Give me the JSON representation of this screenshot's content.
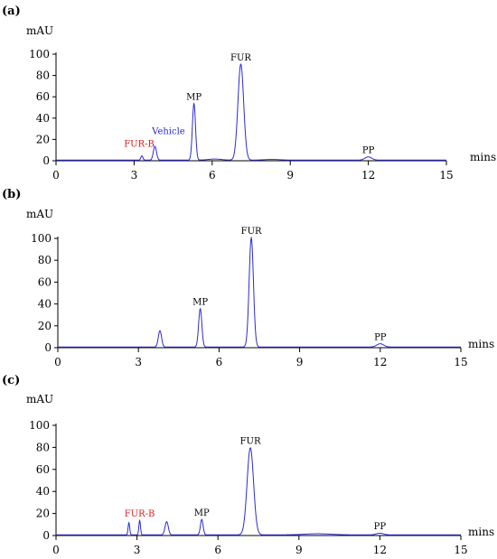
{
  "chart_data": [
    {
      "type": "line",
      "panel_label": "(a)",
      "ylabel": "mAU",
      "xlabel": "mins",
      "xlim": [
        0,
        15
      ],
      "ylim": [
        0,
        100
      ],
      "x_ticks": [
        "0",
        "3",
        "6",
        "9",
        "12",
        "15"
      ],
      "y_ticks": [
        "0",
        "20",
        "40",
        "60",
        "80",
        "100"
      ],
      "line_color": "#2b2bd6",
      "peaks": [
        {
          "label": "FUR-B",
          "x": 3.3,
          "y": 4,
          "color": "#d42020"
        },
        {
          "label": "Vehicle",
          "x": 3.8,
          "y": 13,
          "color": "#2a2ad0"
        },
        {
          "label": "MP",
          "x": 5.3,
          "y": 53,
          "color": "#000000"
        },
        {
          "label": "",
          "x": 6.1,
          "y": 1,
          "color": "#000000"
        },
        {
          "label": "FUR",
          "x": 7.1,
          "y": 90,
          "color": "#000000"
        },
        {
          "label": "",
          "x": 8.3,
          "y": 0.6,
          "color": "#000000"
        },
        {
          "label": "PP",
          "x": 12.0,
          "y": 3,
          "color": "#000000"
        }
      ]
    },
    {
      "type": "line",
      "panel_label": "(b)",
      "ylabel": "mAU",
      "xlabel": "mins",
      "xlim": [
        0,
        15
      ],
      "ylim": [
        0,
        100
      ],
      "x_ticks": [
        "0",
        "3",
        "6",
        "9",
        "12",
        "15"
      ],
      "y_ticks": [
        "0",
        "20",
        "40",
        "60",
        "80",
        "100"
      ],
      "line_color": "#2b2bd6",
      "peaks": [
        {
          "label": "",
          "x": 3.8,
          "y": 15,
          "color": "#000000"
        },
        {
          "label": "MP",
          "x": 5.3,
          "y": 35,
          "color": "#000000"
        },
        {
          "label": "FUR",
          "x": 7.2,
          "y": 100,
          "color": "#000000"
        },
        {
          "label": "PP",
          "x": 12.0,
          "y": 3,
          "color": "#000000"
        }
      ]
    },
    {
      "type": "line",
      "panel_label": "(c)",
      "ylabel": "mAU",
      "xlabel": "mins",
      "xlim": [
        0,
        15
      ],
      "ylim": [
        0,
        100
      ],
      "x_ticks": [
        "0",
        "3",
        "6",
        "9",
        "12",
        "15"
      ],
      "y_ticks": [
        "0",
        "20",
        "40",
        "60",
        "80",
        "100"
      ],
      "line_color": "#2b2bd6",
      "peaks": [
        {
          "label": "",
          "x": 2.7,
          "y": 11,
          "color": "#000000"
        },
        {
          "label": "FUR-B",
          "x": 3.1,
          "y": 13,
          "color": "#d42020"
        },
        {
          "label": "",
          "x": 4.1,
          "y": 12,
          "color": "#000000"
        },
        {
          "label": "MP",
          "x": 5.4,
          "y": 14,
          "color": "#000000"
        },
        {
          "label": "FUR",
          "x": 7.2,
          "y": 79,
          "color": "#000000"
        },
        {
          "label": "",
          "x": 9.7,
          "y": 1,
          "color": "#000000"
        },
        {
          "label": "PP",
          "x": 12.0,
          "y": 1.5,
          "color": "#000000"
        }
      ]
    }
  ]
}
